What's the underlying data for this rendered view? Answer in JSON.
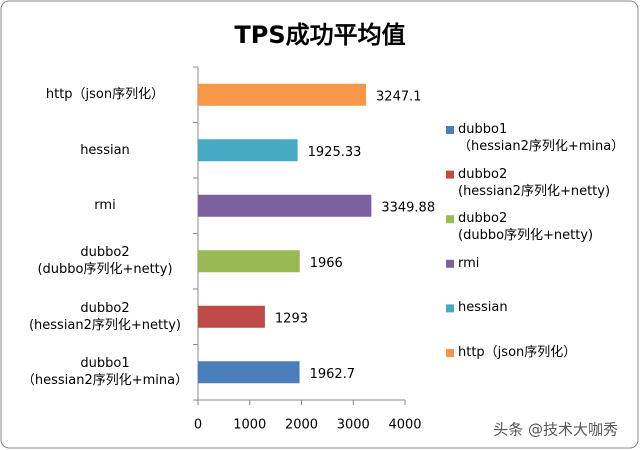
{
  "chart_data": {
    "type": "barh",
    "title": "TPS成功平均值",
    "categories": [
      "dubbo1\n（hessian2序列化+mina）",
      "dubbo2\n(hessian2序列化+netty)",
      "dubbo2\n(dubbo序列化+netty)",
      "rmi",
      "hessian",
      "http（json序列化）"
    ],
    "values": [
      1962.7,
      1293,
      1966,
      3349.88,
      1925.33,
      3247.1
    ],
    "colors": [
      "#4a7ebb",
      "#be4b48",
      "#98b954",
      "#7d60a0",
      "#46aac5",
      "#f79646"
    ],
    "xlim": [
      0,
      4000
    ],
    "xticks": [
      0,
      1000,
      2000,
      3000,
      4000
    ],
    "legend": "right",
    "grid": false,
    "watermark": "头条 @技术大咖秀"
  }
}
